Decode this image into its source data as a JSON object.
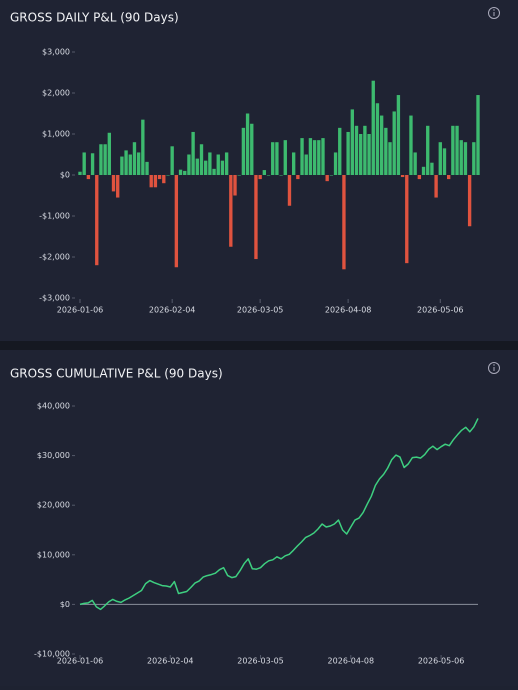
{
  "chart_data": [
    {
      "type": "bar",
      "title": "GROSS DAILY P&L (90 Days)",
      "values": [
        80,
        550,
        -100,
        530,
        -2200,
        750,
        750,
        1030,
        -400,
        -550,
        450,
        600,
        500,
        800,
        550,
        1350,
        320,
        -300,
        -300,
        -100,
        -200,
        0,
        700,
        -2250,
        130,
        100,
        500,
        1050,
        400,
        750,
        350,
        550,
        150,
        500,
        350,
        550,
        -1750,
        -500,
        0,
        1150,
        1500,
        1250,
        -2050,
        -100,
        120,
        0,
        800,
        800,
        0,
        850,
        -750,
        550,
        -100,
        900,
        500,
        900,
        850,
        850,
        900,
        -150,
        0,
        550,
        1150,
        -2300,
        1050,
        1600,
        1200,
        1000,
        1200,
        1000,
        2300,
        1750,
        1450,
        1150,
        800,
        1550,
        1950,
        -50,
        -2150,
        1450,
        550,
        -100,
        200,
        1200,
        300,
        -550,
        800,
        650,
        -100,
        1200,
        1200,
        850,
        800,
        -1250,
        800,
        1950
      ],
      "positive_color": "#3dba6f",
      "negative_color": "#e0533f",
      "xlim": [
        0,
        95
      ],
      "xticks": [
        {
          "value": 0,
          "label": "2026-01-06"
        },
        {
          "value": 22,
          "label": "2026-02-04"
        },
        {
          "value": 43,
          "label": "2026-03-05"
        },
        {
          "value": 64,
          "label": "2026-04-08"
        },
        {
          "value": 86,
          "label": "2026-05-06"
        }
      ],
      "ylim": [
        -3000,
        3000
      ],
      "yticks": [
        {
          "value": 3000,
          "label": "$3,000"
        },
        {
          "value": 2000,
          "label": "$2,000"
        },
        {
          "value": 1000,
          "label": "$1,000"
        },
        {
          "value": 0,
          "label": "$0"
        },
        {
          "value": -1000,
          "label": "-$1,000"
        },
        {
          "value": -2000,
          "label": "-$2,000"
        },
        {
          "value": -3000,
          "label": "-$3,000"
        }
      ],
      "grid": false
    },
    {
      "type": "line",
      "title": "GROSS CUMULATIVE P&L (90 Days)",
      "values": [
        0,
        200,
        300,
        800,
        -500,
        -1000,
        -300,
        500,
        1000,
        600,
        400,
        900,
        1300,
        1800,
        2300,
        2800,
        4200,
        4800,
        4400,
        4100,
        3800,
        3700,
        3500,
        4600,
        2200,
        2400,
        2600,
        3400,
        4300,
        4700,
        5500,
        5800,
        6000,
        6300,
        7000,
        7400,
        5800,
        5400,
        5600,
        6800,
        8200,
        9200,
        7200,
        7100,
        7400,
        8200,
        8800,
        9000,
        9600,
        9200,
        9800,
        10100,
        10900,
        11800,
        12600,
        13500,
        13900,
        14400,
        15200,
        16200,
        15600,
        15800,
        16200,
        17000,
        15000,
        14200,
        15600,
        17000,
        17400,
        18500,
        20200,
        21800,
        24000,
        25300,
        26200,
        27500,
        29200,
        30100,
        29700,
        27600,
        28300,
        29600,
        29700,
        29500,
        30200,
        31300,
        31900,
        31200,
        31800,
        32300,
        32000,
        33200,
        34200,
        35100,
        35700,
        34800,
        35800,
        37500
      ],
      "color": "#3ecf80",
      "xlim": [
        0,
        97
      ],
      "xticks": [
        {
          "value": 0,
          "label": "2026-01-06"
        },
        {
          "value": 22,
          "label": "2026-02-04"
        },
        {
          "value": 44,
          "label": "2026-03-05"
        },
        {
          "value": 66,
          "label": "2026-04-08"
        },
        {
          "value": 88,
          "label": "2026-05-06"
        }
      ],
      "ylim": [
        -10000,
        40000
      ],
      "yticks": [
        {
          "value": 40000,
          "label": "$40,000"
        },
        {
          "value": 30000,
          "label": "$30,000"
        },
        {
          "value": 20000,
          "label": "$20,000"
        },
        {
          "value": 10000,
          "label": "$10,000"
        },
        {
          "value": 0,
          "label": "$0"
        },
        {
          "value": -10000,
          "label": "-$10,000"
        }
      ],
      "zero_line": true
    }
  ]
}
